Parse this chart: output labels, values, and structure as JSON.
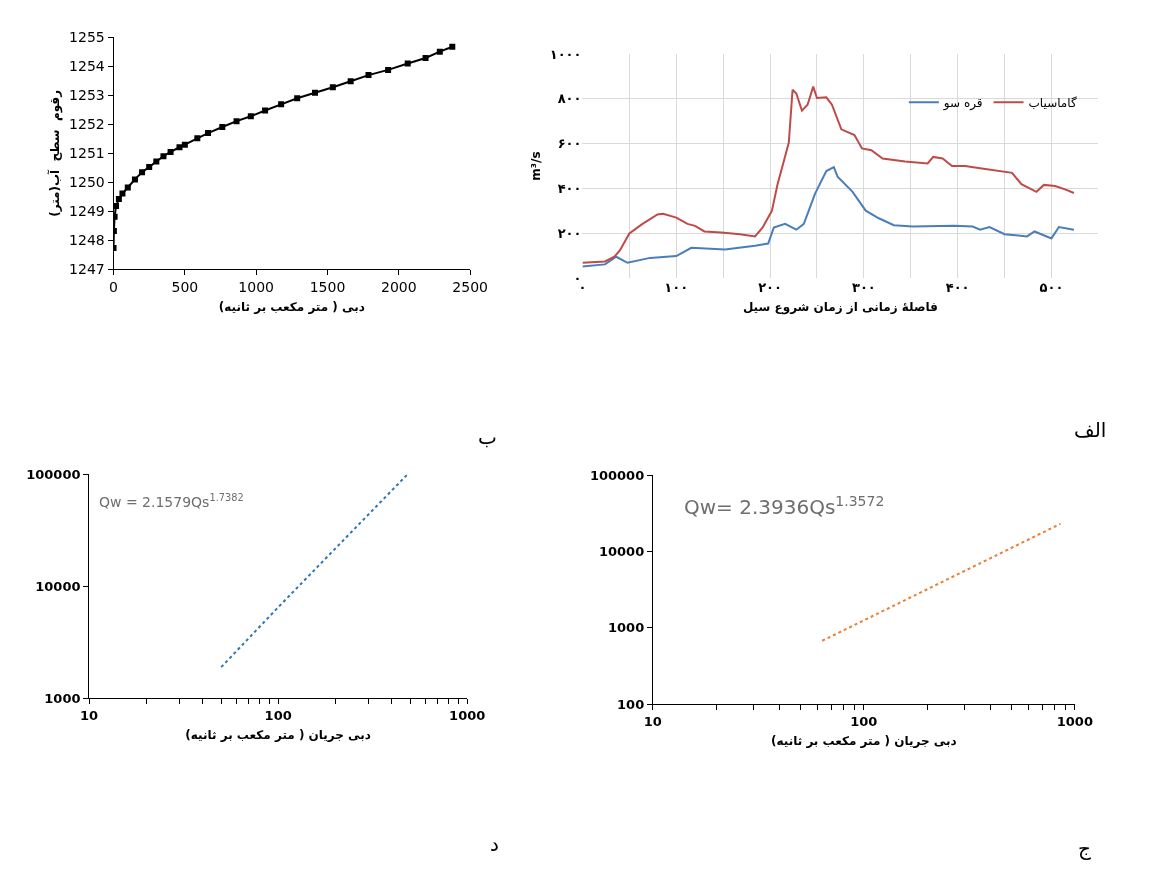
{
  "chart_data": [
    {
      "type": "line",
      "title": "ب",
      "xlabel": "دبی ( متر مکعب بر ثانیه)",
      "ylabel": "رقوم  سطح  آب(متر)",
      "marker": "square",
      "grid": false,
      "legend": false,
      "xlim": [
        0,
        2500
      ],
      "xticks": [
        0,
        500,
        1000,
        1500,
        2000,
        2500
      ],
      "ylim": [
        1247,
        1255
      ],
      "yticks": [
        1247,
        1248,
        1249,
        1250,
        1251,
        1252,
        1253,
        1254,
        1255
      ],
      "series": [
        {
          "color": "#000000",
          "x": [
            0,
            2.5,
            7.5,
            17.5,
            37.5,
            62.5,
            100,
            150,
            200,
            250,
            300,
            350,
            400,
            462.5,
            500,
            587.5,
            662.5,
            762.5,
            862.5,
            962.5,
            1062.5,
            1175,
            1287.5,
            1412.5,
            1537.5,
            1662.5,
            1787.5,
            1925,
            2062.5,
            2187.5,
            2287.5,
            2375
          ],
          "values": [
            1247.73,
            1248.32,
            1248.81,
            1249.18,
            1249.42,
            1249.61,
            1249.82,
            1250.1,
            1250.35,
            1250.53,
            1250.72,
            1250.9,
            1251.05,
            1251.21,
            1251.3,
            1251.52,
            1251.7,
            1251.91,
            1252.11,
            1252.28,
            1252.48,
            1252.69,
            1252.9,
            1253.09,
            1253.28,
            1253.49,
            1253.7,
            1253.88,
            1254.1,
            1254.29,
            1254.51,
            1254.68
          ]
        }
      ]
    },
    {
      "type": "line",
      "title": "الف",
      "xlabel": "فاصلهٔ زمانی از زمان شروع سیل",
      "ylabel": "m³/s",
      "grid": true,
      "legend": "top right",
      "marker": "none",
      "xlim": [
        0,
        550
      ],
      "xticks": [
        {
          "value": 0,
          "label": "۰"
        },
        {
          "value": 50,
          "label": null
        },
        {
          "value": 100,
          "label": "۱۰۰"
        },
        {
          "value": 150,
          "label": null
        },
        {
          "value": 200,
          "label": "۲۰۰"
        },
        {
          "value": 250,
          "label": null
        },
        {
          "value": 300,
          "label": "۳۰۰"
        },
        {
          "value": 350,
          "label": null
        },
        {
          "value": 400,
          "label": "۴۰۰"
        },
        {
          "value": 450,
          "label": null
        },
        {
          "value": 500,
          "label": "۵۰۰"
        }
      ],
      "ylim": [
        0,
        1000
      ],
      "yticks": [
        {
          "value": 0,
          "label": "۰"
        },
        {
          "value": 200,
          "label": "۲۰۰"
        },
        {
          "value": 400,
          "label": "۴۰۰"
        },
        {
          "value": 600,
          "label": "۶۰۰"
        },
        {
          "value": 800,
          "label": "۸۰۰"
        },
        {
          "value": 1000,
          "label": "۱۰۰۰"
        }
      ],
      "series": [
        {
          "name": "قره سو",
          "color": "#4a7ebb",
          "x": [
            0,
            24,
            36,
            48,
            72,
            100,
            116,
            152,
            184,
            198,
            204,
            216,
            228,
            236,
            248,
            260,
            268,
            272,
            288,
            302,
            316,
            332,
            352,
            396,
            416,
            424,
            434,
            450,
            474,
            482,
            500,
            508,
            524
          ],
          "values": [
            52,
            61,
            95,
            68,
            90,
            98,
            135,
            128,
            144,
            154,
            225,
            242,
            216,
            242,
            377,
            478,
            495,
            453,
            385,
            301,
            267,
            236,
            230,
            233,
            230,
            216,
            228,
            196,
            186,
            208,
            177,
            228,
            216
          ]
        },
        {
          "name": "گاماسیاب",
          "color": "#be4b48",
          "x": [
            0,
            24,
            34,
            40,
            50,
            64,
            80,
            86,
            100,
            112,
            120,
            130,
            148,
            168,
            184,
            192,
            202,
            208,
            214,
            220,
            224,
            228,
            234,
            240,
            246,
            250,
            260,
            266,
            276,
            290,
            298,
            308,
            320,
            344,
            368,
            374,
            384,
            394,
            408,
            424,
            458,
            468,
            484,
            492,
            504,
            516,
            524
          ],
          "values": [
            68,
            74,
            95,
            124,
            199,
            242,
            284,
            287,
            270,
            242,
            233,
            208,
            203,
            196,
            186,
            225,
            301,
            419,
            512,
            605,
            841,
            824,
            748,
            774,
            855,
            804,
            807,
            774,
            664,
            639,
            579,
            571,
            534,
            520,
            512,
            541,
            534,
            500,
            500,
            490,
            470,
            419,
            385,
            416,
            411,
            394,
            380
          ]
        }
      ]
    },
    {
      "type": "line",
      "title": "د",
      "xlabel": "دبی جریان ( متر مکعب بر ثانیه)",
      "log": "xy",
      "grid": false,
      "legend": false,
      "line_style": "dotted",
      "marker": "none",
      "annotations": [
        "Qw = 2.1579Qs$^{1.7382}$"
      ],
      "xlim": [
        10,
        1000
      ],
      "xticks": [
        10,
        {
          "value": 20,
          "label": null
        },
        {
          "value": 30,
          "label": null
        },
        {
          "value": 40,
          "label": null
        },
        {
          "value": 50,
          "label": null
        },
        {
          "value": 60,
          "label": null
        },
        {
          "value": 70,
          "label": null
        },
        {
          "value": 80,
          "label": null
        },
        {
          "value": 90,
          "label": null
        },
        100,
        {
          "value": 200,
          "label": null
        },
        {
          "value": 300,
          "label": null
        },
        {
          "value": 400,
          "label": null
        },
        {
          "value": 500,
          "label": null
        },
        {
          "value": 600,
          "label": null
        },
        {
          "value": 700,
          "label": null
        },
        {
          "value": 800,
          "label": null
        },
        {
          "value": 900,
          "label": null
        },
        1000
      ],
      "ylim": [
        1000,
        100000
      ],
      "yticks": [
        1000,
        10000,
        100000
      ],
      "series": [
        {
          "color": "#2e75b6",
          "x": [
            50,
            100,
            480
          ],
          "values": [
            1900,
            6500,
            99000
          ]
        }
      ]
    },
    {
      "type": "line",
      "title": "ج",
      "xlabel": "دبی جریان ( متر مکعب بر ثانیه)",
      "log": "xy",
      "grid": false,
      "legend": false,
      "line_style": "dotted",
      "marker": "none",
      "annotations": [
        "Qw= 2.3936Qs$^{1.3572}$"
      ],
      "xlim": [
        10,
        1000
      ],
      "xticks": [
        10,
        {
          "value": 20,
          "label": null
        },
        {
          "value": 30,
          "label": null
        },
        {
          "value": 40,
          "label": null
        },
        {
          "value": 50,
          "label": null
        },
        {
          "value": 60,
          "label": null
        },
        {
          "value": 70,
          "label": null
        },
        {
          "value": 80,
          "label": null
        },
        {
          "value": 90,
          "label": null
        },
        100,
        {
          "value": 200,
          "label": null
        },
        {
          "value": 300,
          "label": null
        },
        {
          "value": 400,
          "label": null
        },
        {
          "value": 500,
          "label": null
        },
        {
          "value": 600,
          "label": null
        },
        {
          "value": 700,
          "label": null
        },
        {
          "value": 800,
          "label": null
        },
        {
          "value": 900,
          "label": null
        },
        1000
      ],
      "ylim": [
        100,
        100000
      ],
      "yticks": [
        100,
        1000,
        10000,
        100000
      ],
      "series": [
        {
          "color": "#ed7d31",
          "x": [
            63.5,
            100,
            855
          ],
          "values": [
            679,
            1256,
            23200
          ]
        }
      ]
    }
  ]
}
